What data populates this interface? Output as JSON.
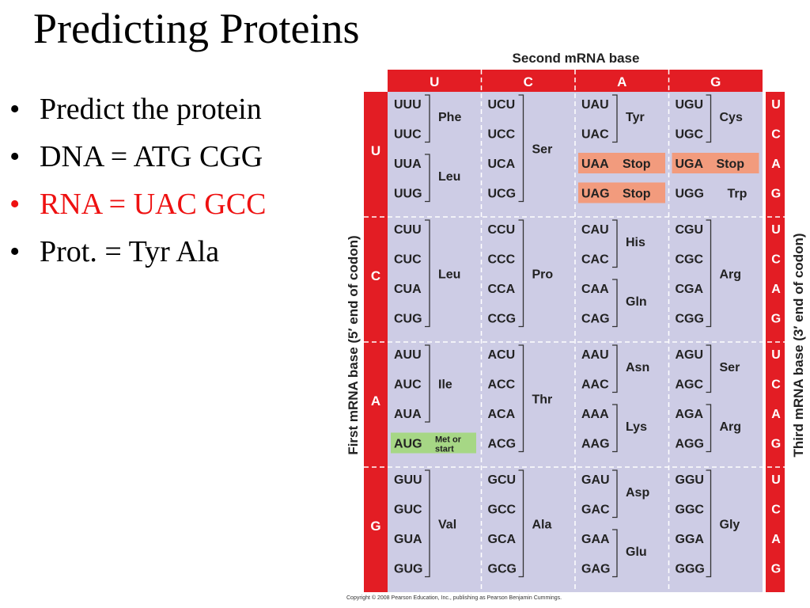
{
  "slide": {
    "title": "Predicting Proteins",
    "bullets": [
      {
        "text": "Predict the protein",
        "color": "#000000"
      },
      {
        "text": "DNA = ATG CGG",
        "color": "#000000"
      },
      {
        "text": "RNA = UAC GCC",
        "color": "#ee1111"
      },
      {
        "text": "Prot. = Tyr   Ala",
        "color": "#000000"
      }
    ]
  },
  "codon_table": {
    "second_base_label": "Second mRNA base",
    "first_base_label": "First mRNA base  (5′ end of codon)",
    "third_base_label": "Third mRNA base  (3′ end of codon)",
    "bases": [
      "U",
      "C",
      "A",
      "G"
    ],
    "codons": [
      [
        "UUU",
        "UUC",
        "UUA",
        "UUG",
        "UCU",
        "UCC",
        "UCA",
        "UCG",
        "UAU",
        "UAC",
        "UAA",
        "UAG",
        "UGU",
        "UGC",
        "UGA",
        "UGG"
      ],
      [
        "CUU",
        "CUC",
        "CUA",
        "CUG",
        "CCU",
        "CCC",
        "CCA",
        "CCG",
        "CAU",
        "CAC",
        "CAA",
        "CAG",
        "CGU",
        "CGC",
        "CGA",
        "CGG"
      ],
      [
        "AUU",
        "AUC",
        "AUA",
        "AUG",
        "ACU",
        "ACC",
        "ACA",
        "ACG",
        "AAU",
        "AAC",
        "AAA",
        "AAG",
        "AGU",
        "AGC",
        "AGA",
        "AGG"
      ],
      [
        "GUU",
        "GUC",
        "GUA",
        "GUG",
        "GCU",
        "GCC",
        "GCA",
        "GCG",
        "GAU",
        "GAC",
        "GAA",
        "GAG",
        "GGU",
        "GGC",
        "GGA",
        "GGG"
      ]
    ],
    "amino_acids": [
      [
        [
          {
            "name": "Phe",
            "rows": [
              0,
              1
            ]
          },
          {
            "name": "Leu",
            "rows": [
              2,
              3
            ]
          }
        ],
        [
          {
            "name": "Ser",
            "rows": [
              0,
              1,
              2,
              3
            ]
          }
        ],
        [
          {
            "name": "Tyr",
            "rows": [
              0,
              1
            ]
          },
          {
            "name": "Stop",
            "rows": [
              2
            ],
            "stop": true
          },
          {
            "name": "Stop",
            "rows": [
              3
            ],
            "stop": true
          }
        ],
        [
          {
            "name": "Cys",
            "rows": [
              0,
              1
            ]
          },
          {
            "name": "Stop",
            "rows": [
              2
            ],
            "stop": true
          },
          {
            "name": "Trp",
            "rows": [
              3
            ]
          }
        ]
      ],
      [
        [
          {
            "name": "Leu",
            "rows": [
              0,
              1,
              2,
              3
            ]
          }
        ],
        [
          {
            "name": "Pro",
            "rows": [
              0,
              1,
              2,
              3
            ]
          }
        ],
        [
          {
            "name": "His",
            "rows": [
              0,
              1
            ]
          },
          {
            "name": "Gln",
            "rows": [
              2,
              3
            ]
          }
        ],
        [
          {
            "name": "Arg",
            "rows": [
              0,
              1,
              2,
              3
            ]
          }
        ]
      ],
      [
        [
          {
            "name": "Ile",
            "rows": [
              0,
              1,
              2
            ]
          },
          {
            "name": "Met or start",
            "rows": [
              3
            ],
            "start": true
          }
        ],
        [
          {
            "name": "Thr",
            "rows": [
              0,
              1,
              2,
              3
            ]
          }
        ],
        [
          {
            "name": "Asn",
            "rows": [
              0,
              1
            ]
          },
          {
            "name": "Lys",
            "rows": [
              2,
              3
            ]
          }
        ],
        [
          {
            "name": "Ser",
            "rows": [
              0,
              1
            ]
          },
          {
            "name": "Arg",
            "rows": [
              2,
              3
            ]
          }
        ]
      ],
      [
        [
          {
            "name": "Val",
            "rows": [
              0,
              1,
              2,
              3
            ]
          }
        ],
        [
          {
            "name": "Ala",
            "rows": [
              0,
              1,
              2,
              3
            ]
          }
        ],
        [
          {
            "name": "Asp",
            "rows": [
              0,
              1
            ]
          },
          {
            "name": "Glu",
            "rows": [
              2,
              3
            ]
          }
        ],
        [
          {
            "name": "Gly",
            "rows": [
              0,
              1,
              2,
              3
            ]
          }
        ]
      ]
    ],
    "colors": {
      "header_red": "#e31d24",
      "cell_lavender": "#cdcce5",
      "stop_salmon": "#f29b7d",
      "start_green": "#a6d785",
      "text_dark": "#222222"
    }
  },
  "copyright": "Copyright © 2008 Pearson Education, Inc., publishing as Pearson Benjamin Cummings."
}
